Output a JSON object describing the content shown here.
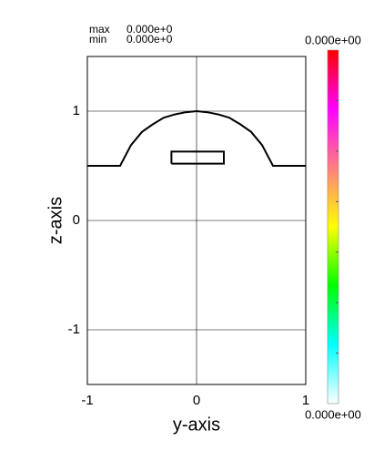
{
  "chart_data": {
    "type": "line",
    "x_label": "y-axis",
    "y_label": "z-axis",
    "xlim": [
      -1,
      1
    ],
    "ylim": [
      -1.5,
      1.5
    ],
    "xticks": [
      -1,
      0,
      1
    ],
    "yticks": [
      -1,
      0,
      1
    ],
    "grid": true,
    "series": [
      {
        "color": "#000000",
        "x": [
          -1,
          -0.7,
          -0.6,
          -0.5,
          -0.4,
          -0.3,
          -0.2,
          -0.1,
          0,
          0.1,
          0.2,
          0.3,
          0.4,
          0.5,
          0.6,
          0.7,
          1
        ],
        "values": [
          0.5,
          0.5,
          0.69,
          0.81,
          0.88,
          0.94,
          0.97,
          0.99,
          1.0,
          0.99,
          0.97,
          0.94,
          0.88,
          0.81,
          0.69,
          0.5,
          0.5
        ]
      },
      {
        "color": "#000000",
        "x": [
          -0.23,
          0.25,
          0.25,
          -0.23,
          -0.23
        ],
        "values": [
          0.52,
          0.52,
          0.63,
          0.63,
          0.52
        ]
      }
    ],
    "stats": [
      {
        "name": "max",
        "value": {
          "value": 0,
          "label": "0.000e+0"
        }
      },
      {
        "name": "min",
        "value": {
          "value": 0,
          "label": "0.000e+0"
        }
      }
    ],
    "colorbar": {
      "colors": [
        "#ffffff",
        "#00ffff",
        "#00ff00",
        "#ffff00",
        "#ff8080",
        "#ff00ff",
        "#ff0000"
      ],
      "top": {
        "value": 0,
        "label": "0.000e+00"
      },
      "bottom": {
        "value": 0,
        "label": "0.000e+00"
      }
    }
  }
}
